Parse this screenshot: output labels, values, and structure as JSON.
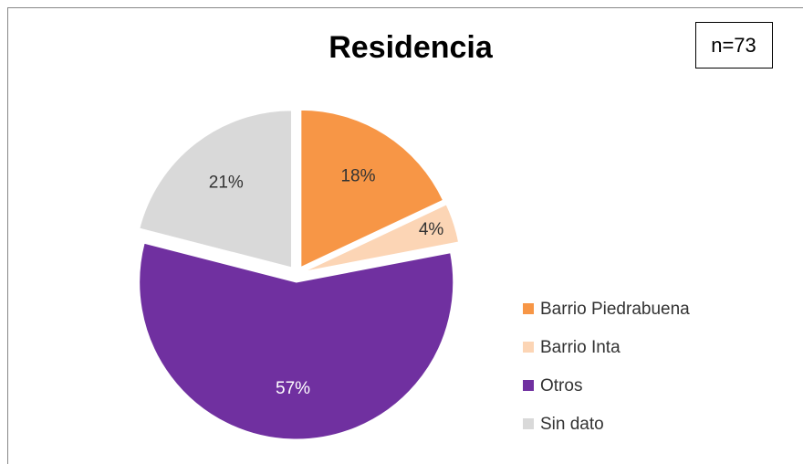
{
  "chart_data": {
    "type": "pie",
    "title": "Residencia",
    "annotation": "n=73",
    "categories": [
      "Barrio Piedrabuena",
      "Barrio Inta",
      "Otros",
      "Sin dato"
    ],
    "values": [
      18,
      4,
      57,
      21
    ],
    "value_labels": [
      "18%",
      "4%",
      "57%",
      "21%"
    ],
    "colors": [
      "#f79646",
      "#fcd5b5",
      "#7030a0",
      "#d9d9d9"
    ],
    "legend": "right"
  }
}
